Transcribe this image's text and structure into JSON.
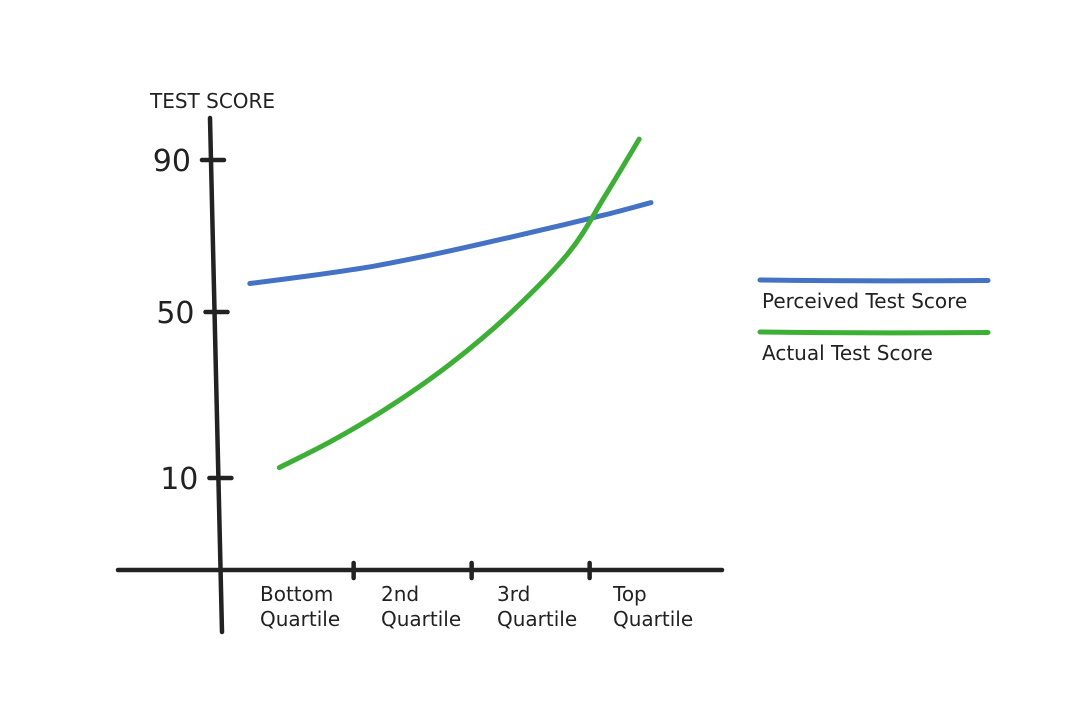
{
  "chart_data": {
    "type": "line",
    "title": "",
    "ylabel": "TEST SCORE",
    "xlabel": "",
    "yticks": [
      90,
      50,
      10
    ],
    "categories": [
      [
        "Bottom",
        "Quartile"
      ],
      [
        "2nd",
        "Quartile"
      ],
      [
        "3rd",
        "Quartile"
      ],
      [
        "Top",
        "Quartile"
      ]
    ],
    "series": [
      {
        "name": "Perceived Test Score",
        "color": "#4472c4",
        "x": [
          0.1,
          0.6,
          1.1,
          1.6,
          2.1,
          2.6,
          3.1,
          3.5
        ],
        "values": [
          57.5,
          59.5,
          61.8,
          64.8,
          68.2,
          71.8,
          75.5,
          78.8
        ]
      },
      {
        "name": "Actual Test Score",
        "color": "#3cb034",
        "x": [
          0.35,
          0.8,
          1.3,
          1.8,
          2.3,
          2.8,
          3.1,
          3.4
        ],
        "values": [
          12.5,
          19.0,
          27.5,
          37.5,
          49.5,
          65.5,
          80.0,
          95.5
        ]
      }
    ],
    "legend_position": "right"
  }
}
